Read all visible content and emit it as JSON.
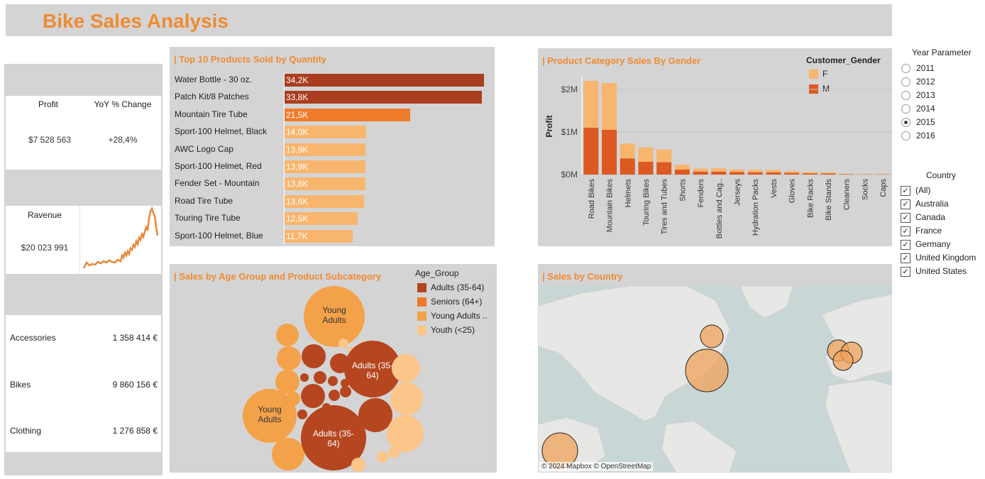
{
  "header": {
    "title": "Bike Sales Analysis"
  },
  "kpis": {
    "profit_label": "Profit",
    "yoy_label": "YoY % Change",
    "profit_value": "$7 528 563",
    "yoy_value": "+28,4%",
    "revenue_label": "Ravenue",
    "revenue_value": "$20 023 991"
  },
  "categories": [
    {
      "name": "Accessories",
      "value": "1 358 414 €"
    },
    {
      "name": "Bikes",
      "value": "9 860 156 €"
    },
    {
      "name": "Clothing",
      "value": "1 276 858 €"
    }
  ],
  "top_products": {
    "title": "| Top 10 Products Sold by Quantity",
    "items": [
      {
        "name": "Water Bottle - 30 oz.",
        "label": "34,2K",
        "value": 34.2,
        "color": "#a93d1f"
      },
      {
        "name": "Patch Kit/8 Patches",
        "label": "33,8K",
        "value": 33.8,
        "color": "#a93d1f"
      },
      {
        "name": "Mountain Tire Tube",
        "label": "21,5K",
        "value": 21.5,
        "color": "#ef7c2a"
      },
      {
        "name": "Sport-100 Helmet, Black",
        "label": "14,0K",
        "value": 14.0,
        "color": "#f8b56e"
      },
      {
        "name": "AWC Logo Cap",
        "label": "13,9K",
        "value": 13.9,
        "color": "#f8b56e"
      },
      {
        "name": "Sport-100 Helmet, Red",
        "label": "13,9K",
        "value": 13.9,
        "color": "#f8b56e"
      },
      {
        "name": "Fender Set - Mountain",
        "label": "13,8K",
        "value": 13.8,
        "color": "#f8b56e"
      },
      {
        "name": "Road Tire Tube",
        "label": "13,6K",
        "value": 13.6,
        "color": "#f8b56e"
      },
      {
        "name": "Touring Tire Tube",
        "label": "12,5K",
        "value": 12.5,
        "color": "#f8b56e"
      },
      {
        "name": "Sport-100 Helmet, Blue",
        "label": "11,7K",
        "value": 11.7,
        "color": "#f8b56e"
      }
    ]
  },
  "gender_chart": {
    "title": "|  Product Category Sales By Gender",
    "legend_title": "Customer_Gender",
    "legend": [
      {
        "name": "F",
        "color": "#f8b56e"
      },
      {
        "name": "M",
        "color": "#dc5a22"
      }
    ],
    "ylabel": "Profit",
    "yticks": [
      "$2M",
      "$1M",
      "$0M"
    ]
  },
  "chart_data": {
    "type": "bar",
    "stacked": true,
    "ylim": [
      0,
      2300000
    ],
    "ylabel": "Profit",
    "categories": [
      "Road Bikes",
      "Mountain Bikes",
      "Helmets",
      "Touring Bikes",
      "Tires and Tubes",
      "Shorts",
      "Fenders",
      "Bottles and Cag..",
      "Jerseys",
      "Hydration Packs",
      "Vests",
      "Gloves",
      "Bike Racks",
      "Bike Stands",
      "Cleaners",
      "Socks",
      "Caps"
    ],
    "series": [
      {
        "name": "M",
        "values": [
          1100000,
          1050000,
          380000,
          300000,
          290000,
          120000,
          70000,
          70000,
          60000,
          55000,
          50000,
          40000,
          30000,
          25000,
          10000,
          6000,
          6000
        ]
      },
      {
        "name": "F",
        "values": [
          1100000,
          1100000,
          350000,
          340000,
          300000,
          110000,
          70000,
          80000,
          60000,
          55000,
          60000,
          40000,
          30000,
          25000,
          10000,
          8000,
          8000
        ]
      }
    ]
  },
  "age_chart": {
    "title": "| Sales by Age Group and Product Subcategory",
    "legend_title": "Age_Group",
    "legend": [
      {
        "name": "Adults (35-64)",
        "color": "#b5461f"
      },
      {
        "name": "Seniors (64+)",
        "color": "#ec7a2b"
      },
      {
        "name": "Young Adults ..",
        "color": "#f4a24a"
      },
      {
        "name": "Youth (<25)",
        "color": "#fcc58a"
      }
    ],
    "bubble_labels": [
      "Young Adults",
      "Adults (35-64)",
      "Young Adults",
      "Adults (35-64)"
    ]
  },
  "map": {
    "title": "| Sales by Country",
    "attribution": "© 2024 Mapbox © OpenStreetMap"
  },
  "filters": {
    "year_title": "Year Parameter",
    "years": [
      "2011",
      "2012",
      "2013",
      "2014",
      "2015",
      "2016"
    ],
    "selected_year": "2015",
    "country_title": "Country",
    "countries": [
      "(All)",
      "Australia",
      "Canada",
      "France",
      "Germany",
      "United Kingdom",
      "United States"
    ]
  },
  "colors": {
    "accent": "#ef8b32",
    "panel": "#d4d4d4"
  }
}
